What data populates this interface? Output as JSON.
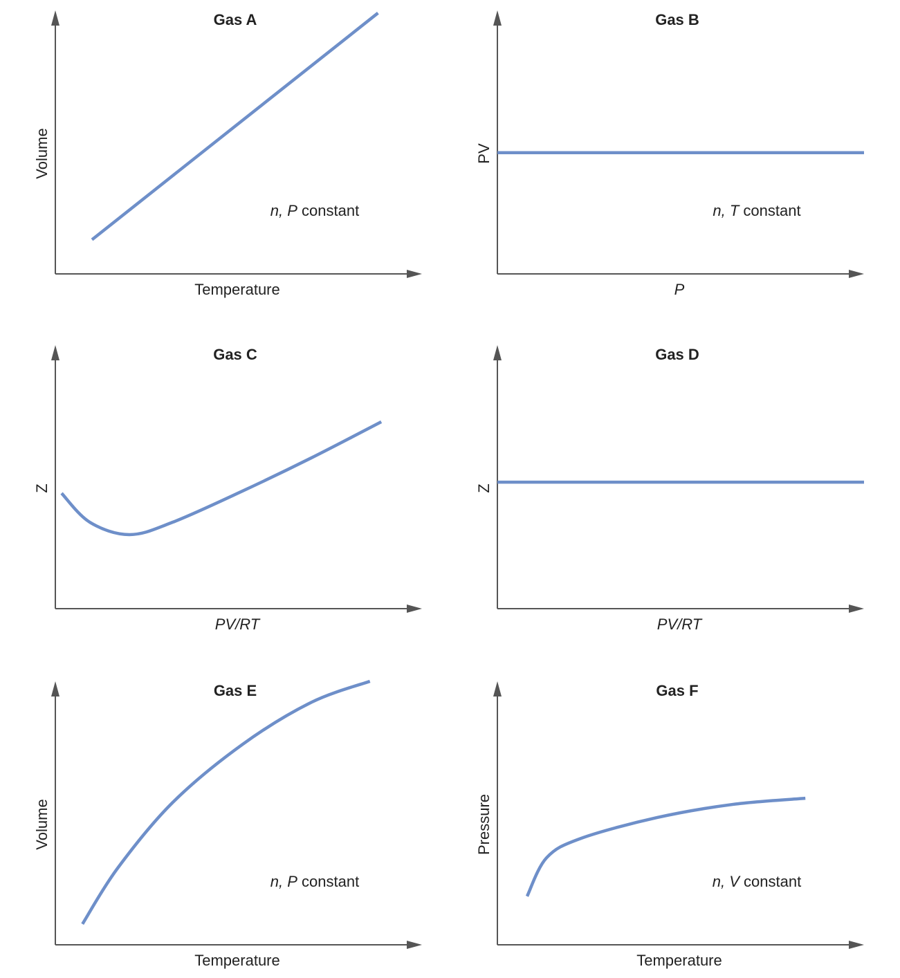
{
  "colors": {
    "curve": "#6e8fc9",
    "axis": "#555555",
    "text": "#222222"
  },
  "chart_data": [
    {
      "type": "line",
      "title": "Gas A",
      "xlabel": "Temperature",
      "xlabel_italic": false,
      "ylabel": "Volume",
      "ylabel_italic": false,
      "annotation": "n, P constant",
      "xlim": [
        0,
        100
      ],
      "ylim": [
        0,
        100
      ],
      "grid": false,
      "ticks": false,
      "points": [
        [
          10,
          13
        ],
        [
          88,
          99
        ]
      ]
    },
    {
      "type": "line",
      "title": "Gas B",
      "xlabel": "P",
      "xlabel_italic": true,
      "ylabel": "PV",
      "ylabel_italic": false,
      "annotation": "n, T constant",
      "xlim": [
        0,
        100
      ],
      "ylim": [
        0,
        100
      ],
      "grid": false,
      "ticks": false,
      "points": [
        [
          0,
          46
        ],
        [
          100,
          46
        ]
      ]
    },
    {
      "type": "line",
      "title": "Gas C",
      "xlabel": "PV/RT",
      "xlabel_italic": true,
      "ylabel": "Z",
      "ylabel_italic": false,
      "annotation": "",
      "xlim": [
        0,
        100
      ],
      "ylim": [
        0,
        100
      ],
      "grid": false,
      "ticks": false,
      "points": [
        [
          1.7,
          43.8
        ],
        [
          9.4,
          32.8
        ],
        [
          20.2,
          28.1
        ],
        [
          32,
          32.8
        ],
        [
          51,
          44.6
        ],
        [
          69.8,
          57.2
        ],
        [
          88.9,
          70.9
        ]
      ]
    },
    {
      "type": "line",
      "title": "Gas D",
      "xlabel": "PV/RT",
      "xlabel_italic": true,
      "ylabel": "Z",
      "ylabel_italic": false,
      "annotation": "",
      "xlim": [
        0,
        100
      ],
      "ylim": [
        0,
        100
      ],
      "grid": false,
      "ticks": false,
      "points": [
        [
          0,
          48
        ],
        [
          100,
          48
        ]
      ]
    },
    {
      "type": "line",
      "title": "Gas E",
      "xlabel": "Temperature",
      "xlabel_italic": false,
      "ylabel": "Volume",
      "ylabel_italic": false,
      "annotation": "n, P constant",
      "xlim": [
        0,
        100
      ],
      "ylim": [
        0,
        100
      ],
      "grid": false,
      "ticks": false,
      "points": [
        [
          7.4,
          7.9
        ],
        [
          17,
          29.1
        ],
        [
          32,
          54
        ],
        [
          51,
          76
        ],
        [
          69.8,
          92
        ],
        [
          85.8,
          100
        ]
      ]
    },
    {
      "type": "line",
      "title": "Gas F",
      "xlabel": "Temperature",
      "xlabel_italic": false,
      "ylabel": "Pressure",
      "ylabel_italic": false,
      "annotation": "n, V constant",
      "xlim": [
        0,
        100
      ],
      "ylim": [
        0,
        100
      ],
      "grid": false,
      "ticks": false,
      "points": [
        [
          8.1,
          18.4
        ],
        [
          13.4,
          33
        ],
        [
          22.8,
          40.4
        ],
        [
          43.6,
          48.3
        ],
        [
          64.3,
          53.3
        ],
        [
          84,
          55.6
        ]
      ]
    }
  ]
}
